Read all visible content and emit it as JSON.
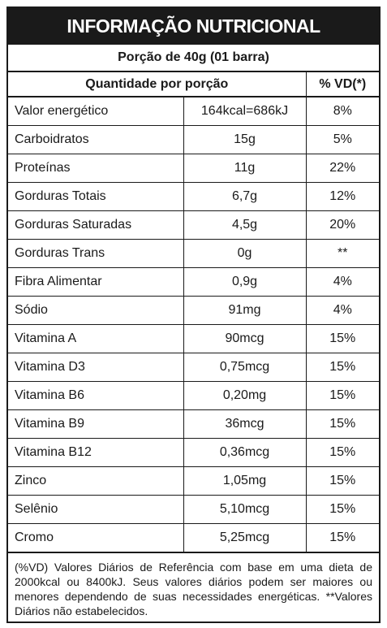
{
  "title": "INFORMAÇÃO NUTRICIONAL",
  "serving": "Porção de 40g (01 barra)",
  "headers": {
    "quantity": "Quantidade por porção",
    "vd": "% VD(*)"
  },
  "rows": [
    {
      "name": "Valor energético",
      "qty": "164kcal=686kJ",
      "vd": "8%"
    },
    {
      "name": "Carboidratos",
      "qty": "15g",
      "vd": "5%"
    },
    {
      "name": "Proteínas",
      "qty": "11g",
      "vd": "22%"
    },
    {
      "name": "Gorduras Totais",
      "qty": "6,7g",
      "vd": "12%"
    },
    {
      "name": "Gorduras Saturadas",
      "qty": "4,5g",
      "vd": "20%"
    },
    {
      "name": "Gorduras Trans",
      "qty": "0g",
      "vd": "**"
    },
    {
      "name": "Fibra Alimentar",
      "qty": "0,9g",
      "vd": "4%"
    },
    {
      "name": "Sódio",
      "qty": "91mg",
      "vd": "4%"
    },
    {
      "name": "Vitamina A",
      "qty": "90mcg",
      "vd": "15%"
    },
    {
      "name": "Vitamina D3",
      "qty": "0,75mcg",
      "vd": "15%"
    },
    {
      "name": "Vitamina B6",
      "qty": "0,20mg",
      "vd": "15%"
    },
    {
      "name": "Vitamina B9",
      "qty": "36mcg",
      "vd": "15%"
    },
    {
      "name": "Vitamina B12",
      "qty": "0,36mcg",
      "vd": "15%"
    },
    {
      "name": "Zinco",
      "qty": "1,05mg",
      "vd": "15%"
    },
    {
      "name": "Selênio",
      "qty": "5,10mcg",
      "vd": "15%"
    },
    {
      "name": "Cromo",
      "qty": "5,25mcg",
      "vd": "15%"
    }
  ],
  "footnote": "(%VD) Valores Diários de Referência com base em uma dieta de 2000kcal ou 8400kJ. Seus valores diários podem ser maiores ou menores dependendo de suas necessidades energéticas. **Valores Diários não estabelecidos."
}
